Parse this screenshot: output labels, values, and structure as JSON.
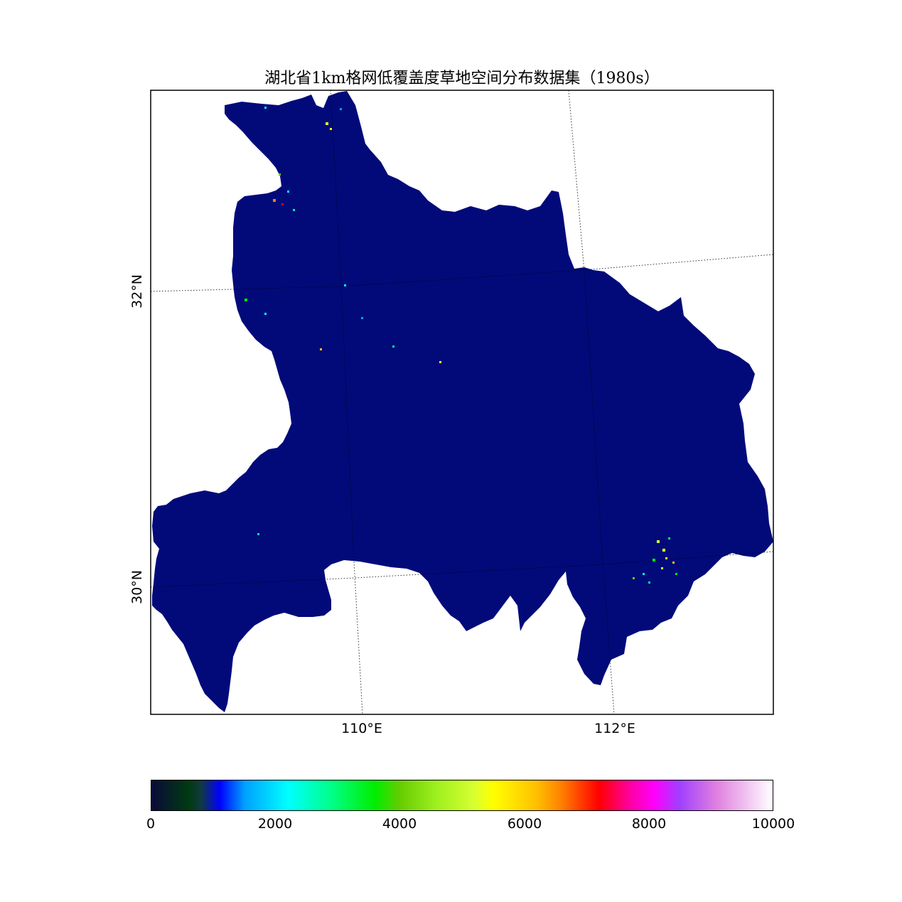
{
  "title": "湖北省1km格网低覆盖度草地空间分布数据集（1980s）",
  "map": {
    "region": "Hubei Province",
    "fill_color": "#020a7a",
    "outline": "black",
    "graticule_style": "dotted",
    "longitude_labels": [
      "110°E",
      "112°E"
    ],
    "latitude_labels": [
      "32°N",
      "30°N"
    ]
  },
  "colorbar": {
    "colormap": "gist_ncar",
    "min": 0,
    "max": 10000,
    "tick_labels": [
      "0",
      "2000",
      "4000",
      "6000",
      "8000",
      "10000"
    ]
  }
}
